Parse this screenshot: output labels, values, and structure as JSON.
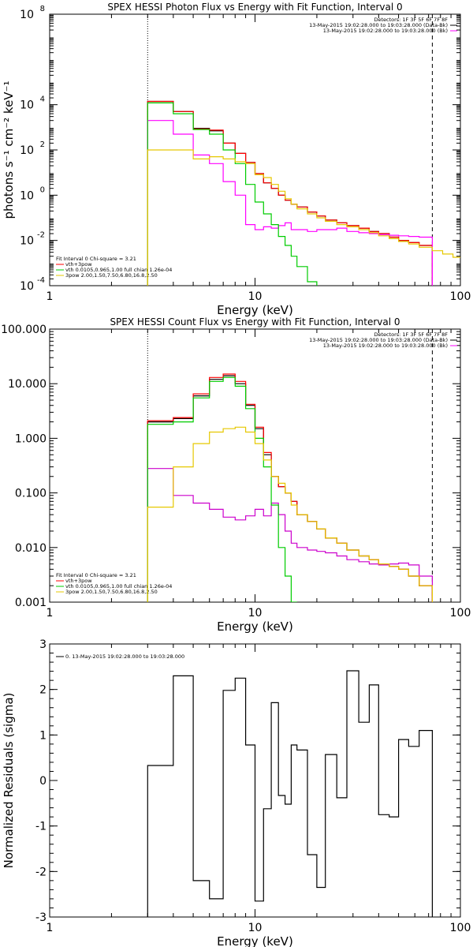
{
  "chart_data": [
    {
      "type": "line",
      "title": "SPEX HESSI Photon Flux vs Energy with Fit Function, Interval 0",
      "xlabel": "Energy (keV)",
      "ylabel": "photons s⁻¹ cm⁻² keV⁻¹",
      "xscale": "log",
      "yscale": "log",
      "xlim": [
        1,
        100
      ],
      "ylim": [
        0.0001,
        100000000
      ],
      "x_ticks": [
        {
          "v": 1,
          "label": "1"
        },
        {
          "v": 10,
          "label": "10"
        },
        {
          "v": 100,
          "label": "100"
        }
      ],
      "y_ticks": [
        {
          "v": 0.0001,
          "base": "10",
          "exp": "-4"
        },
        {
          "v": 0.01,
          "base": "10",
          "exp": "-2"
        },
        {
          "v": 1,
          "base": "10",
          "exp": "0"
        },
        {
          "v": 100,
          "base": "10",
          "exp": "2"
        },
        {
          "v": 10000,
          "base": "10",
          "exp": "4"
        },
        {
          "v": 100000000,
          "base": "10",
          "exp": "8"
        }
      ],
      "header_lines": [
        "Detectors: 1F 3F 5F 6F 7F 8F",
        "13-May-2015 19:02:28.000 to 19:03:28.000 (Data-Bk)",
        "13-May-2015 19:02:28.000 to 19:03:28.000 (Bk)"
      ],
      "legend_lines": [
        "Fit Interval 0   Chi-square = 3.21",
        "vth+3pow",
        "vth 0.0105,0.965,1.00  full chian 1.26e-04",
        "3pow 2.00,1.50,7.50,6.80,16.8,2.50"
      ],
      "vlines": [
        {
          "x": 3,
          "style": "dotted"
        },
        {
          "x": 73,
          "style": "dashed"
        }
      ],
      "series": [
        {
          "color": "#000000",
          "edges": [
            3,
            4,
            5,
            6,
            7,
            8,
            9,
            10,
            11,
            12,
            13,
            14,
            15,
            16,
            18,
            20,
            22,
            25,
            28,
            32,
            36,
            40,
            45,
            50,
            56,
            63,
            73
          ],
          "values": [
            14000,
            5000,
            900,
            700,
            200,
            70,
            28,
            9,
            3.5,
            2,
            1,
            0.6,
            0.4,
            0.3,
            0.18,
            0.12,
            0.08,
            0.06,
            0.045,
            0.035,
            0.025,
            0.02,
            0.014,
            0.01,
            0.008,
            0.006
          ]
        },
        {
          "color": "#ff0000",
          "edges": [
            3,
            4,
            5,
            6,
            7,
            8,
            9,
            10,
            11,
            12,
            13,
            14,
            15,
            16,
            18,
            20,
            22,
            25,
            28,
            32,
            36,
            40,
            45,
            50,
            56,
            63,
            73
          ],
          "values": [
            14000,
            5000,
            850,
            750,
            200,
            70,
            28,
            9,
            3.5,
            2,
            1,
            0.6,
            0.4,
            0.3,
            0.18,
            0.12,
            0.08,
            0.06,
            0.045,
            0.035,
            0.025,
            0.02,
            0.014,
            0.01,
            0.008,
            0.006
          ]
        },
        {
          "color": "#ff00ff",
          "edges": [
            3,
            4,
            5,
            6,
            7,
            8,
            9,
            10,
            11,
            12,
            13,
            14,
            15,
            16,
            18,
            20,
            22,
            25,
            28,
            32,
            36,
            40,
            45,
            50,
            56,
            63,
            73
          ],
          "values": [
            2000,
            500,
            60,
            25,
            4,
            1,
            0.05,
            0.03,
            0.04,
            0.035,
            0.045,
            0.06,
            0.03,
            0.03,
            0.025,
            0.03,
            0.03,
            0.035,
            0.025,
            0.022,
            0.02,
            0.018,
            0.017,
            0.016,
            0.015,
            0.014
          ]
        },
        {
          "color": "#00cc00",
          "edges": [
            3,
            4,
            5,
            6,
            7,
            8,
            9,
            10,
            11,
            12,
            13,
            14,
            15,
            16,
            18,
            20
          ],
          "values": [
            12000,
            4000,
            800,
            500,
            100,
            25,
            3,
            0.5,
            0.15,
            0.05,
            0.015,
            0.006,
            0.002,
            0.0007,
            0.00015
          ]
        },
        {
          "color": "#e6c800",
          "edges": [
            3,
            4,
            5,
            6,
            7,
            8,
            9,
            10,
            11,
            12,
            13,
            14,
            15,
            16,
            18,
            20,
            22,
            25,
            28,
            32,
            36,
            40,
            45,
            50,
            56,
            63,
            73,
            82,
            92,
            100
          ],
          "values": [
            100,
            100,
            40,
            50,
            40,
            30,
            25,
            8,
            6,
            3,
            1.5,
            0.7,
            0.4,
            0.25,
            0.15,
            0.1,
            0.07,
            0.05,
            0.04,
            0.03,
            0.022,
            0.016,
            0.012,
            0.009,
            0.007,
            0.005,
            0.0035,
            0.0025,
            0.0018
          ]
        }
      ]
    },
    {
      "type": "line",
      "title": "SPEX HESSI Count Flux vs Energy with Fit Function, Interval 0",
      "xlabel": "Energy (keV)",
      "ylabel": "",
      "xscale": "log",
      "yscale": "log",
      "xlim": [
        1,
        100
      ],
      "ylim": [
        0.001,
        100
      ],
      "x_ticks": [
        {
          "v": 1,
          "label": "1"
        },
        {
          "v": 10,
          "label": "10"
        },
        {
          "v": 100,
          "label": "100"
        }
      ],
      "y_ticks": [
        {
          "v": 0.001,
          "label": "0.001"
        },
        {
          "v": 0.01,
          "label": "0.010"
        },
        {
          "v": 0.1,
          "label": "0.100"
        },
        {
          "v": 1,
          "label": "1.000"
        },
        {
          "v": 10,
          "label": "10.000"
        },
        {
          "v": 100,
          "label": "100.000"
        }
      ],
      "header_lines": [
        "Detectors: 1F 3F 5F 6F 7F 8F",
        "13-May-2015 19:02:28.000 to 19:03:28.000 (Data-Bk)",
        "13-May-2015 19:02:28.000 to 19:03:28.000 (Bk)"
      ],
      "legend_lines": [
        "Fit Interval 0   Chi-square = 3.21",
        "vth+3pow",
        "vth 0.0105,0.965,1.00  full chian 1.26e-04",
        "3pow 2.00,1.50,7.50,6.80,16.8,2.50"
      ],
      "vlines": [
        {
          "x": 3,
          "style": "dotted"
        },
        {
          "x": 73,
          "style": "dashed"
        }
      ],
      "series": [
        {
          "color": "#000000",
          "edges": [
            3,
            4,
            5,
            6,
            7,
            8,
            9,
            10,
            11,
            12,
            13,
            14,
            15,
            16,
            18,
            20,
            22,
            25,
            28,
            32,
            36,
            40,
            45,
            50,
            56,
            63,
            73
          ],
          "values": [
            2,
            2.3,
            6,
            12,
            14,
            10,
            4,
            1.5,
            0.5,
            0.2,
            0.13,
            0.1,
            0.07,
            0.04,
            0.03,
            0.022,
            0.015,
            0.012,
            0.009,
            0.007,
            0.006,
            0.005,
            0.0045,
            0.004,
            0.003,
            0.002
          ]
        },
        {
          "color": "#ff0000",
          "edges": [
            3,
            4,
            5,
            6,
            7,
            8,
            9,
            10,
            11,
            12,
            13,
            14,
            15,
            16,
            18,
            20,
            22,
            25,
            28,
            32,
            36,
            40,
            45,
            50,
            56,
            63,
            73
          ],
          "values": [
            2.1,
            2.4,
            6.5,
            13,
            15,
            11,
            4.2,
            1.6,
            0.55,
            0.2,
            0.13,
            0.1,
            0.07,
            0.04,
            0.03,
            0.022,
            0.015,
            0.012,
            0.009,
            0.007,
            0.006,
            0.005,
            0.0045,
            0.004,
            0.003,
            0.002
          ]
        },
        {
          "color": "#cc00cc",
          "edges": [
            3,
            4,
            5,
            6,
            7,
            8,
            9,
            10,
            11,
            12,
            13,
            14,
            15,
            16,
            18,
            20,
            22,
            25,
            28,
            32,
            36,
            40,
            45,
            50,
            56,
            63,
            73
          ],
          "values": [
            0.28,
            0.09,
            0.065,
            0.05,
            0.036,
            0.032,
            0.038,
            0.05,
            0.038,
            0.065,
            0.04,
            0.02,
            0.012,
            0.01,
            0.009,
            0.0085,
            0.008,
            0.007,
            0.006,
            0.0055,
            0.005,
            0.0048,
            0.005,
            0.0052,
            0.0048,
            0.003
          ]
        },
        {
          "color": "#00cc00",
          "edges": [
            3,
            4,
            5,
            6,
            7,
            8,
            9,
            10,
            11,
            12,
            13,
            14,
            15,
            16
          ],
          "values": [
            1.8,
            2,
            5.5,
            11,
            13,
            9,
            3.5,
            1,
            0.3,
            0.06,
            0.01,
            0.003,
            0.001
          ]
        },
        {
          "color": "#e6c800",
          "edges": [
            3,
            4,
            5,
            6,
            7,
            8,
            9,
            10,
            11,
            12,
            13,
            14,
            15,
            16,
            18,
            20,
            22,
            25,
            28,
            32,
            36,
            40,
            45,
            50,
            56,
            63,
            73
          ],
          "values": [
            0.055,
            0.3,
            0.8,
            1.3,
            1.5,
            1.6,
            1.3,
            0.8,
            0.4,
            0.2,
            0.15,
            0.1,
            0.06,
            0.04,
            0.03,
            0.022,
            0.015,
            0.012,
            0.009,
            0.007,
            0.006,
            0.005,
            0.0045,
            0.004,
            0.003,
            0.002
          ]
        }
      ]
    },
    {
      "type": "line",
      "title": "",
      "xlabel": "Energy (keV)",
      "ylabel": "Normalized Residuals (sigma)",
      "xscale": "log",
      "yscale": "linear",
      "xlim": [
        1,
        100
      ],
      "ylim": [
        -3,
        3
      ],
      "x_ticks": [
        {
          "v": 1,
          "label": "1"
        },
        {
          "v": 10,
          "label": "10"
        },
        {
          "v": 100,
          "label": "100"
        }
      ],
      "y_ticks": [
        {
          "v": -3,
          "label": "-3"
        },
        {
          "v": -2,
          "label": "-2"
        },
        {
          "v": -1,
          "label": "-1"
        },
        {
          "v": 0,
          "label": "0"
        },
        {
          "v": 1,
          "label": "1"
        },
        {
          "v": 2,
          "label": "2"
        },
        {
          "v": 3,
          "label": "3"
        }
      ],
      "legend_lines": [
        "0. 13-May-2015 19:02:28.000 to 19:03:28.000"
      ],
      "series": [
        {
          "color": "#000000",
          "edges": [
            3,
            4,
            5,
            6,
            7,
            8,
            9,
            10,
            11,
            12,
            13,
            14,
            15,
            16,
            18,
            20,
            22,
            25,
            28,
            32,
            36,
            40,
            45,
            50,
            56,
            63,
            73
          ],
          "values": [
            0.33,
            2.3,
            -2.2,
            -2.6,
            1.98,
            2.25,
            0.78,
            -2.65,
            -0.62,
            1.71,
            -0.33,
            -0.52,
            0.78,
            0.67,
            -1.63,
            -2.35,
            0.57,
            -0.38,
            2.41,
            1.28,
            2.1,
            -0.75,
            -0.8,
            0.9,
            0.75,
            1.1
          ]
        }
      ]
    }
  ]
}
